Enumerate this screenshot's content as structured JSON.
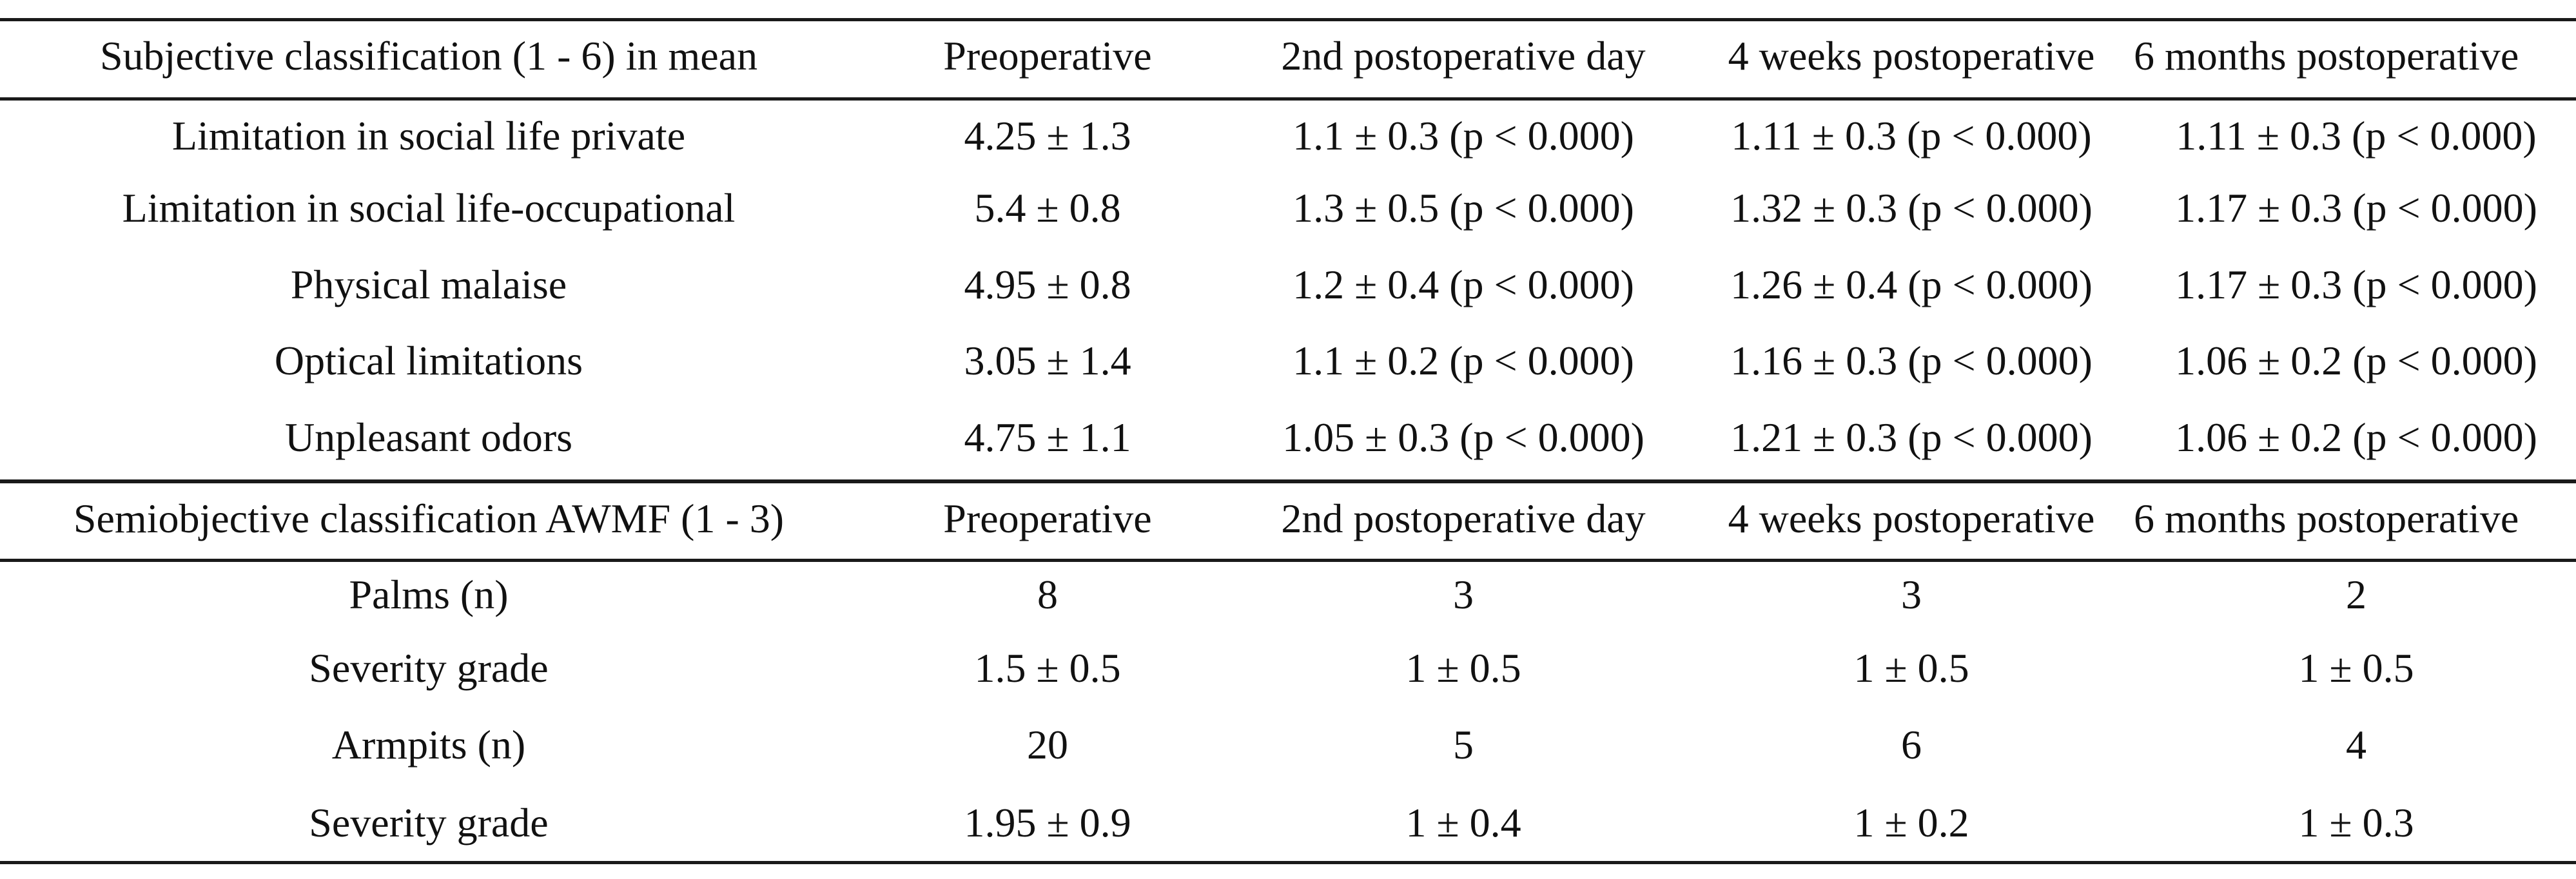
{
  "subjective": {
    "headers": [
      "Subjective classification (1 - 6) in mean",
      "Preoperative",
      "2nd postoperative day",
      "4 weeks postoperative",
      "6 months postoperative"
    ],
    "rows": [
      [
        "Limitation in social life private",
        "4.25 ± 1.3",
        "1.1 ± 0.3 (p < 0.000)",
        "1.11 ± 0.3 (p < 0.000)",
        "1.11 ± 0.3 (p < 0.000)"
      ],
      [
        "Limitation in social life-occupational",
        "5.4 ± 0.8",
        "1.3 ± 0.5 (p < 0.000)",
        "1.32 ± 0.3 (p < 0.000)",
        "1.17 ± 0.3 (p < 0.000)"
      ],
      [
        "Physical malaise",
        "4.95 ± 0.8",
        "1.2 ± 0.4 (p < 0.000)",
        "1.26 ± 0.4 (p < 0.000)",
        "1.17 ± 0.3 (p < 0.000)"
      ],
      [
        "Optical limitations",
        "3.05 ± 1.4",
        "1.1 ± 0.2 (p < 0.000)",
        "1.16 ± 0.3 (p < 0.000)",
        "1.06 ± 0.2 (p < 0.000)"
      ],
      [
        "Unpleasant odors",
        "4.75 ± 1.1",
        "1.05 ± 0.3 (p < 0.000)",
        "1.21 ± 0.3 (p < 0.000)",
        "1.06 ± 0.2 (p < 0.000)"
      ]
    ]
  },
  "semiobjective": {
    "headers": [
      "Semiobjective classification AWMF (1 - 3)",
      "Preoperative",
      "2nd postoperative day",
      "4 weeks postoperative",
      "6 months postoperative"
    ],
    "rows": [
      [
        "Palms (n)",
        "8",
        "3",
        "3",
        "2"
      ],
      [
        "Severity grade",
        "1.5 ± 0.5",
        "1 ± 0.5",
        "1 ± 0.5",
        "1 ± 0.5"
      ],
      [
        "Armpits (n)",
        "20",
        "5",
        "6",
        "4"
      ],
      [
        "Severity grade",
        "1.95 ± 0.9",
        "1 ± 0.4",
        "1 ± 0.2",
        "1 ± 0.3"
      ]
    ]
  }
}
